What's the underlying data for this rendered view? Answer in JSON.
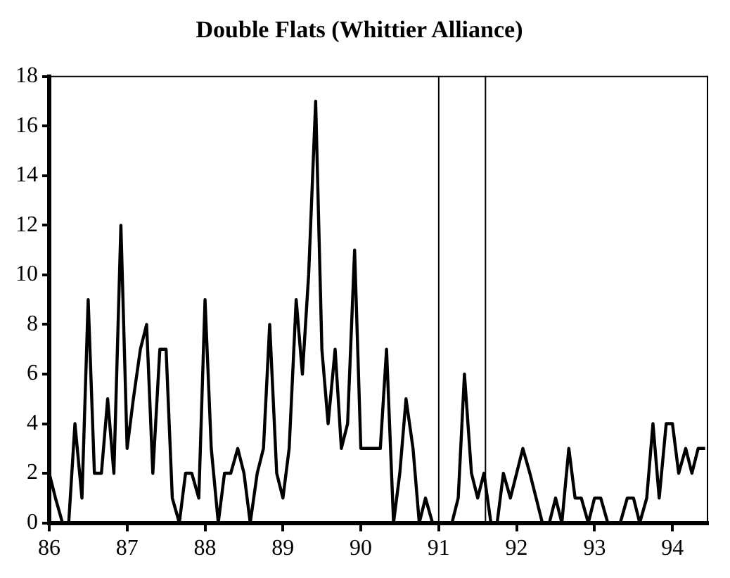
{
  "chart_data": {
    "type": "line",
    "title": "Double Flats (Whittier Alliance)",
    "x": [
      86,
      86.08,
      86.17,
      86.25,
      86.33,
      86.42,
      86.5,
      86.58,
      86.67,
      86.75,
      86.83,
      86.92,
      87,
      87.08,
      87.17,
      87.25,
      87.33,
      87.42,
      87.5,
      87.58,
      87.67,
      87.75,
      87.83,
      87.92,
      88,
      88.08,
      88.17,
      88.25,
      88.33,
      88.42,
      88.5,
      88.58,
      88.67,
      88.75,
      88.83,
      88.92,
      89,
      89.08,
      89.17,
      89.25,
      89.33,
      89.42,
      89.5,
      89.58,
      89.67,
      89.75,
      89.83,
      89.92,
      90,
      90.08,
      90.17,
      90.25,
      90.33,
      90.42,
      90.5,
      90.58,
      90.67,
      90.75,
      90.83,
      90.92,
      91,
      91.08,
      91.17,
      91.25,
      91.33,
      91.42,
      91.5,
      91.58,
      91.67,
      91.75,
      91.83,
      91.92,
      92,
      92.08,
      92.17,
      92.25,
      92.33,
      92.42,
      92.5,
      92.58,
      92.67,
      92.75,
      92.83,
      92.92,
      93,
      93.08,
      93.17,
      93.25,
      93.33,
      93.42,
      93.5,
      93.58,
      93.67,
      93.75,
      93.83,
      93.92,
      94,
      94.08,
      94.17,
      94.25,
      94.33,
      94.42
    ],
    "series": [
      {
        "color": "#000000",
        "values": [
          2,
          1,
          0,
          0,
          4,
          1,
          9,
          2,
          2,
          5,
          2,
          12,
          3,
          5,
          7,
          8,
          2,
          7,
          7,
          1,
          0,
          2,
          2,
          1,
          9,
          3,
          0,
          2,
          2,
          3,
          2,
          0,
          2,
          3,
          8,
          2,
          1,
          3,
          9,
          6,
          10,
          17,
          7,
          4,
          7,
          3,
          4,
          11,
          3,
          3,
          3,
          3,
          7,
          0,
          2,
          5,
          3,
          0,
          1,
          0,
          0,
          0,
          0,
          1,
          6,
          2,
          1,
          2,
          0,
          0,
          2,
          1,
          2,
          3,
          2,
          1,
          0,
          0,
          1,
          0,
          3,
          1,
          1,
          0,
          1,
          1,
          0,
          0,
          0,
          1,
          1,
          0,
          1,
          4,
          1,
          4,
          4,
          2,
          3,
          2,
          3,
          3
        ]
      }
    ],
    "xlim": [
      86,
      94.45
    ],
    "xticks": [
      86,
      87,
      88,
      89,
      90,
      91,
      92,
      93,
      94
    ],
    "ylim": [
      0,
      18
    ],
    "yticks": [
      0,
      2,
      4,
      6,
      8,
      10,
      12,
      14,
      16,
      18
    ],
    "ref_lines": [
      {
        "axis": "x",
        "value": 91,
        "color": "#000000"
      },
      {
        "axis": "x",
        "value": 91.6,
        "color": "#000000"
      }
    ],
    "grid": false,
    "legend": false,
    "marker": "none",
    "line_style": "solid"
  }
}
